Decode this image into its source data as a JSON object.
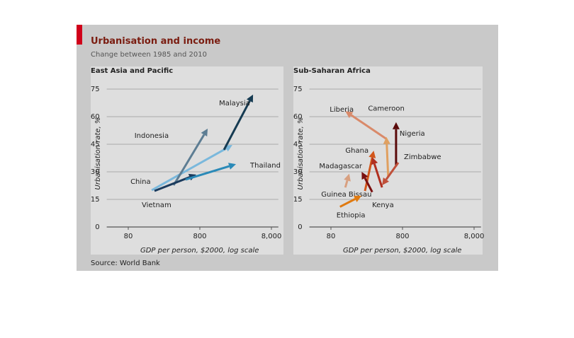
{
  "title": "Urbanisation and income",
  "subtitle": "Change between 1985 and 2010",
  "source": "Source: World Bank",
  "chart_data": [
    {
      "type": "arrow",
      "title": "East Asia and Pacific",
      "x_label": "GDP per person, $2000, log scale",
      "y_label": "Urbanisation rate, %",
      "xlim": [
        40,
        10000
      ],
      "xticks": [
        80,
        800,
        {
          "value": 8000,
          "label": "8,000"
        }
      ],
      "log_x": true,
      "ylim": [
        0,
        80
      ],
      "yticks": [
        0,
        15,
        30,
        45,
        60,
        75
      ],
      "grid": true,
      "series": [
        {
          "name": "China",
          "color": "#7ab8dc",
          "x": [
            170,
            2280
          ],
          "values": [
            20,
            44.6
          ]
        },
        {
          "name": "Indonesia",
          "color": "#5d7d93",
          "x": [
            344,
            1030
          ],
          "values": [
            22.7,
            53.5
          ]
        },
        {
          "name": "Vietnam",
          "color": "#1b3b5d",
          "x": [
            186,
            713
          ],
          "values": [
            19.6,
            28.5
          ]
        },
        {
          "name": "Thailand",
          "color": "#2a8ab8",
          "x": [
            507,
            2560
          ],
          "values": [
            25.8,
            34.2
          ]
        },
        {
          "name": "Malaysia",
          "color": "#163b52",
          "x": [
            1740,
            4430
          ],
          "values": [
            42,
            72
          ]
        }
      ]
    },
    {
      "type": "arrow",
      "title": "Sub-Saharan Africa",
      "x_label": "GDP per person, $2000, log scale",
      "y_label": "Urbanisation rate, %",
      "xlim": [
        40,
        10000
      ],
      "xticks": [
        80,
        800,
        {
          "value": 8000,
          "label": "8,000"
        }
      ],
      "log_x": true,
      "ylim": [
        0,
        80
      ],
      "yticks": [
        0,
        15,
        30,
        45,
        60,
        75
      ],
      "grid": true,
      "series": [
        {
          "name": "Liberia",
          "color": "#d98a6a",
          "x": [
            473,
            127
          ],
          "values": [
            48,
            63
          ]
        },
        {
          "name": "Cameroon",
          "color": "#e0a060",
          "x": [
            505,
            477
          ],
          "values": [
            27,
            49
          ]
        },
        {
          "name": "Nigeria",
          "color": "#5a0a0a",
          "x": [
            650,
            650
          ],
          "values": [
            33,
            57
          ]
        },
        {
          "name": "Zimbabwe",
          "color": "#c0503a",
          "x": [
            698,
            414
          ],
          "values": [
            35,
            22.7
          ]
        },
        {
          "name": "Ghana",
          "color": "#d2561a",
          "x": [
            239,
            317
          ],
          "values": [
            19.6,
            41.5
          ]
        },
        {
          "name": "Madagascar",
          "color": "#7a1010",
          "x": [
            302,
            215
          ],
          "values": [
            19,
            30
          ]
        },
        {
          "name": "Kenya",
          "color": "#b03020",
          "x": [
            414,
            302
          ],
          "values": [
            21.5,
            38
          ]
        },
        {
          "name": "Guinea Bissau",
          "color": "#d8a080",
          "x": [
            127,
            144
          ],
          "values": [
            21.5,
            29
          ]
        },
        {
          "name": "Ethiopia",
          "color": "#e07a10",
          "x": [
            107,
            214
          ],
          "values": [
            11,
            17
          ]
        }
      ]
    }
  ]
}
